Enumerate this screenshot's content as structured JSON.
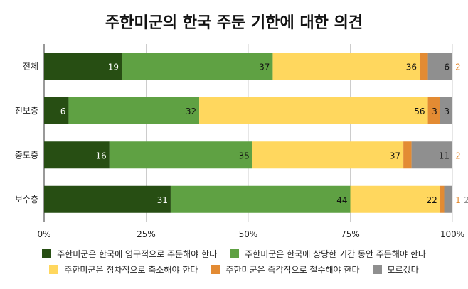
{
  "chart_data": {
    "type": "bar",
    "orientation": "horizontal",
    "stacked": "percent",
    "title": "주한미군의 한국 주둔 기한에 대한 의견",
    "categories": [
      "전체",
      "진보층",
      "중도층",
      "보수층"
    ],
    "series": [
      {
        "name": "주한미군은 한국에 영구적으로 주둔해야 한다",
        "color": "#274e13",
        "values": [
          19,
          6,
          16,
          31
        ]
      },
      {
        "name": "주한미군은 한국에 상당한 기간 동안 주둔해야 한다",
        "color": "#5fa143",
        "values": [
          37,
          32,
          35,
          44
        ]
      },
      {
        "name": "주한미군은 점차적으로 축소해야 한다",
        "color": "#ffd75e",
        "values": [
          36,
          56,
          37,
          22
        ]
      },
      {
        "name": "주한미군은 즉각적으로 철수해야 한다",
        "color": "#e38b33",
        "values": [
          2,
          3,
          2,
          1
        ]
      },
      {
        "name": "모르겠다",
        "color": "#8f8f8f",
        "values": [
          6,
          3,
          11,
          2
        ]
      }
    ],
    "xticks": [
      "0%",
      "25%",
      "50%",
      "75%",
      "100%"
    ],
    "xlim": [
      0,
      100
    ],
    "grid": true,
    "legend": "bottom"
  }
}
